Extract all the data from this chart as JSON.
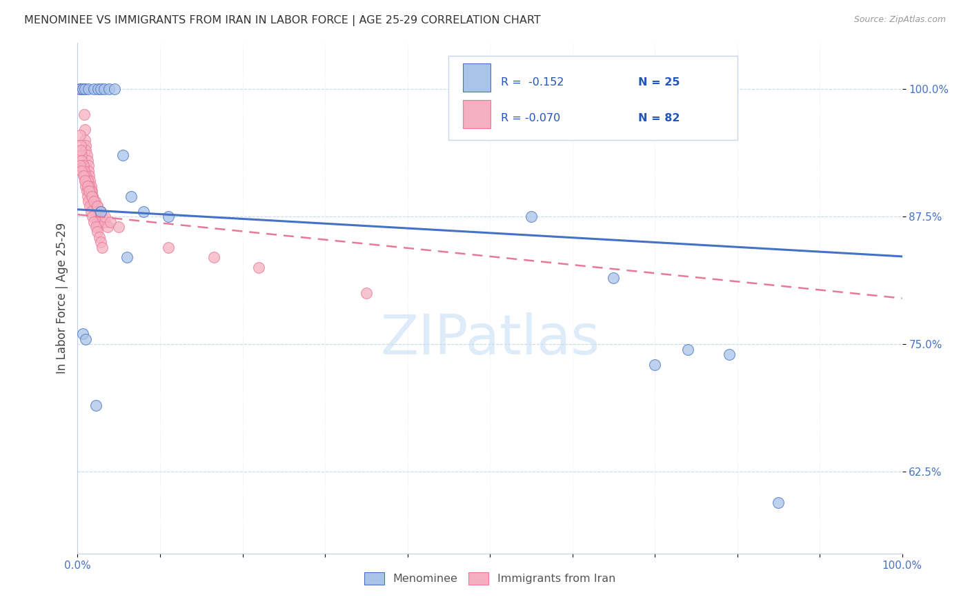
{
  "title": "MENOMINEE VS IMMIGRANTS FROM IRAN IN LABOR FORCE | AGE 25-29 CORRELATION CHART",
  "source": "Source: ZipAtlas.com",
  "ylabel": "In Labor Force | Age 25-29",
  "xlim": [
    0.0,
    1.0
  ],
  "ylim": [
    0.545,
    1.045
  ],
  "ytick_positions": [
    0.625,
    0.75,
    0.875,
    1.0
  ],
  "ytick_labels": [
    "62.5%",
    "75.0%",
    "87.5%",
    "100.0%"
  ],
  "legend_labels": [
    "Menominee",
    "Immigrants from Iran"
  ],
  "blue_color": "#aac4e8",
  "pink_color": "#f5b0c0",
  "blue_line_color": "#4472c4",
  "pink_line_color": "#e87898",
  "r_color": "#2255bb",
  "menominee_x": [
    0.003,
    0.006,
    0.009,
    0.013,
    0.02,
    0.025,
    0.028,
    0.032,
    0.038,
    0.045,
    0.055,
    0.065,
    0.08,
    0.11,
    0.028,
    0.006,
    0.01,
    0.022,
    0.06,
    0.55,
    0.65,
    0.7,
    0.74,
    0.79,
    0.85
  ],
  "menominee_y": [
    1.0,
    1.0,
    1.0,
    1.0,
    1.0,
    1.0,
    1.0,
    1.0,
    1.0,
    1.0,
    0.935,
    0.895,
    0.88,
    0.875,
    0.88,
    0.76,
    0.755,
    0.69,
    0.835,
    0.875,
    0.815,
    0.73,
    0.745,
    0.74,
    0.595
  ],
  "iran_x": [
    0.002,
    0.003,
    0.004,
    0.005,
    0.005,
    0.006,
    0.006,
    0.007,
    0.007,
    0.008,
    0.008,
    0.009,
    0.009,
    0.01,
    0.01,
    0.011,
    0.012,
    0.013,
    0.013,
    0.014,
    0.015,
    0.016,
    0.017,
    0.018,
    0.019,
    0.02,
    0.021,
    0.022,
    0.024,
    0.025,
    0.003,
    0.004,
    0.005,
    0.006,
    0.007,
    0.008,
    0.009,
    0.01,
    0.011,
    0.012,
    0.013,
    0.015,
    0.016,
    0.018,
    0.02,
    0.022,
    0.024,
    0.026,
    0.028,
    0.03,
    0.004,
    0.005,
    0.007,
    0.008,
    0.01,
    0.012,
    0.014,
    0.016,
    0.018,
    0.021,
    0.024,
    0.027,
    0.03,
    0.033,
    0.036,
    0.003,
    0.005,
    0.007,
    0.009,
    0.012,
    0.014,
    0.017,
    0.02,
    0.024,
    0.028,
    0.033,
    0.04,
    0.05,
    0.11,
    0.165,
    0.22,
    0.35
  ],
  "iran_y": [
    1.0,
    1.0,
    1.0,
    1.0,
    1.0,
    1.0,
    1.0,
    1.0,
    1.0,
    1.0,
    0.975,
    0.96,
    0.95,
    0.945,
    0.94,
    0.935,
    0.93,
    0.925,
    0.92,
    0.915,
    0.91,
    0.905,
    0.9,
    0.895,
    0.89,
    0.885,
    0.88,
    0.875,
    0.87,
    0.865,
    0.955,
    0.945,
    0.935,
    0.925,
    0.92,
    0.915,
    0.91,
    0.905,
    0.9,
    0.895,
    0.89,
    0.885,
    0.88,
    0.875,
    0.87,
    0.865,
    0.86,
    0.855,
    0.85,
    0.845,
    0.94,
    0.93,
    0.925,
    0.92,
    0.915,
    0.91,
    0.905,
    0.9,
    0.895,
    0.89,
    0.885,
    0.88,
    0.875,
    0.87,
    0.865,
    0.925,
    0.92,
    0.915,
    0.91,
    0.905,
    0.9,
    0.895,
    0.89,
    0.885,
    0.88,
    0.875,
    0.87,
    0.865,
    0.845,
    0.835,
    0.825,
    0.8
  ],
  "blue_trend_start": 0.882,
  "blue_trend_end": 0.836,
  "pink_trend_start": 0.877,
  "pink_trend_end": 0.795
}
